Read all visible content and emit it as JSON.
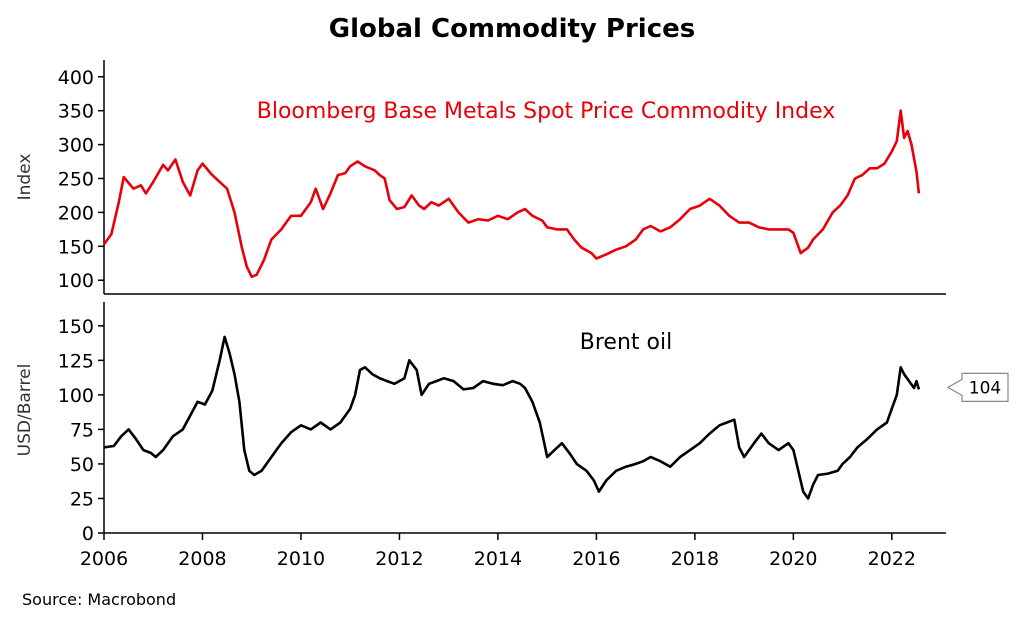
{
  "title": "Global Commodity Prices",
  "source": "Source: Macrobond",
  "chart_data": [
    {
      "type": "line",
      "title": "Global Commodity Prices",
      "ylabel": "Index",
      "ylim": [
        90,
        410
      ],
      "yticks": [
        100,
        150,
        200,
        250,
        300,
        350,
        400
      ],
      "xlim": [
        2006,
        2023.1
      ],
      "grid": false,
      "series": [
        {
          "name": "Bloomberg Base Metals Spot Price Commodity Index",
          "color": "#e8000b",
          "x": [
            2006.0,
            2006.15,
            2006.3,
            2006.4,
            2006.6,
            2006.75,
            2006.85,
            2007.0,
            2007.2,
            2007.3,
            2007.45,
            2007.6,
            2007.75,
            2007.9,
            2008.0,
            2008.2,
            2008.35,
            2008.5,
            2008.65,
            2008.8,
            2008.9,
            2009.0,
            2009.1,
            2009.25,
            2009.4,
            2009.6,
            2009.8,
            2010.0,
            2010.2,
            2010.3,
            2010.45,
            2010.6,
            2010.75,
            2010.9,
            2011.0,
            2011.15,
            2011.3,
            2011.5,
            2011.6,
            2011.7,
            2011.8,
            2011.95,
            2012.1,
            2012.25,
            2012.4,
            2012.5,
            2012.65,
            2012.8,
            2013.0,
            2013.2,
            2013.4,
            2013.6,
            2013.8,
            2014.0,
            2014.2,
            2014.4,
            2014.55,
            2014.7,
            2014.9,
            2015.0,
            2015.2,
            2015.4,
            2015.55,
            2015.7,
            2015.9,
            2016.0,
            2016.2,
            2016.4,
            2016.6,
            2016.8,
            2016.95,
            2017.1,
            2017.3,
            2017.5,
            2017.7,
            2017.9,
            2018.1,
            2018.3,
            2018.4,
            2018.5,
            2018.7,
            2018.9,
            2019.1,
            2019.3,
            2019.5,
            2019.7,
            2019.9,
            2020.0,
            2020.15,
            2020.3,
            2020.4,
            2020.6,
            2020.8,
            2020.95,
            2021.1,
            2021.25,
            2021.4,
            2021.55,
            2021.7,
            2021.85,
            2022.0,
            2022.1,
            2022.18,
            2022.25,
            2022.32,
            2022.4,
            2022.5,
            2022.55
          ],
          "values": [
            153,
            168,
            215,
            252,
            235,
            240,
            228,
            245,
            270,
            262,
            278,
            245,
            225,
            262,
            272,
            255,
            245,
            235,
            200,
            148,
            120,
            105,
            108,
            130,
            160,
            175,
            195,
            195,
            215,
            235,
            205,
            228,
            255,
            258,
            268,
            275,
            268,
            262,
            255,
            250,
            218,
            205,
            208,
            225,
            210,
            205,
            215,
            210,
            220,
            200,
            185,
            190,
            188,
            195,
            190,
            200,
            205,
            195,
            188,
            178,
            175,
            175,
            160,
            148,
            140,
            132,
            138,
            145,
            150,
            160,
            175,
            180,
            172,
            178,
            190,
            205,
            210,
            220,
            215,
            210,
            195,
            185,
            185,
            178,
            175,
            175,
            175,
            170,
            140,
            148,
            160,
            175,
            200,
            210,
            225,
            250,
            255,
            265,
            265,
            272,
            290,
            305,
            350,
            310,
            320,
            300,
            260,
            228
          ]
        }
      ]
    },
    {
      "type": "line",
      "ylabel": "USD/Barrel",
      "ylim": [
        0,
        160
      ],
      "yticks": [
        0,
        25,
        50,
        75,
        100,
        125,
        150
      ],
      "xlim": [
        2006,
        2023.1
      ],
      "xticks": [
        2006,
        2008,
        2010,
        2012,
        2014,
        2016,
        2018,
        2020,
        2022
      ],
      "grid": false,
      "last_value_label": "104",
      "series": [
        {
          "name": "Brent oil",
          "color": "#000000",
          "x": [
            2006.0,
            2006.2,
            2006.35,
            2006.5,
            2006.65,
            2006.8,
            2006.95,
            2007.05,
            2007.2,
            2007.4,
            2007.6,
            2007.75,
            2007.9,
            2008.05,
            2008.2,
            2008.35,
            2008.45,
            2008.55,
            2008.65,
            2008.75,
            2008.85,
            2008.95,
            2009.05,
            2009.2,
            2009.4,
            2009.6,
            2009.8,
            2010.0,
            2010.2,
            2010.4,
            2010.6,
            2010.8,
            2011.0,
            2011.1,
            2011.2,
            2011.3,
            2011.45,
            2011.6,
            2011.75,
            2011.9,
            2012.1,
            2012.2,
            2012.35,
            2012.45,
            2012.6,
            2012.75,
            2012.9,
            2013.1,
            2013.3,
            2013.5,
            2013.7,
            2013.9,
            2014.1,
            2014.3,
            2014.45,
            2014.55,
            2014.7,
            2014.85,
            2015.0,
            2015.15,
            2015.3,
            2015.45,
            2015.6,
            2015.8,
            2015.95,
            2016.05,
            2016.2,
            2016.4,
            2016.6,
            2016.8,
            2016.95,
            2017.1,
            2017.3,
            2017.5,
            2017.7,
            2017.9,
            2018.1,
            2018.3,
            2018.5,
            2018.65,
            2018.8,
            2018.9,
            2019.0,
            2019.2,
            2019.35,
            2019.5,
            2019.7,
            2019.9,
            2020.0,
            2020.1,
            2020.2,
            2020.3,
            2020.4,
            2020.5,
            2020.7,
            2020.9,
            2021.0,
            2021.15,
            2021.3,
            2021.5,
            2021.7,
            2021.9,
            2022.0,
            2022.1,
            2022.18,
            2022.25,
            2022.35,
            2022.45,
            2022.5,
            2022.55
          ],
          "values": [
            62,
            63,
            70,
            75,
            68,
            60,
            58,
            55,
            60,
            70,
            75,
            85,
            95,
            93,
            103,
            125,
            142,
            130,
            115,
            95,
            60,
            45,
            42,
            45,
            55,
            65,
            73,
            78,
            75,
            80,
            75,
            80,
            90,
            100,
            118,
            120,
            115,
            112,
            110,
            108,
            112,
            125,
            118,
            100,
            108,
            110,
            112,
            110,
            104,
            105,
            110,
            108,
            107,
            110,
            108,
            105,
            95,
            80,
            55,
            60,
            65,
            58,
            50,
            45,
            38,
            30,
            38,
            45,
            48,
            50,
            52,
            55,
            52,
            48,
            55,
            60,
            65,
            72,
            78,
            80,
            82,
            62,
            55,
            65,
            72,
            65,
            60,
            65,
            60,
            45,
            30,
            25,
            35,
            42,
            43,
            45,
            50,
            55,
            62,
            68,
            75,
            80,
            90,
            100,
            120,
            115,
            110,
            105,
            110,
            104
          ]
        }
      ]
    }
  ]
}
